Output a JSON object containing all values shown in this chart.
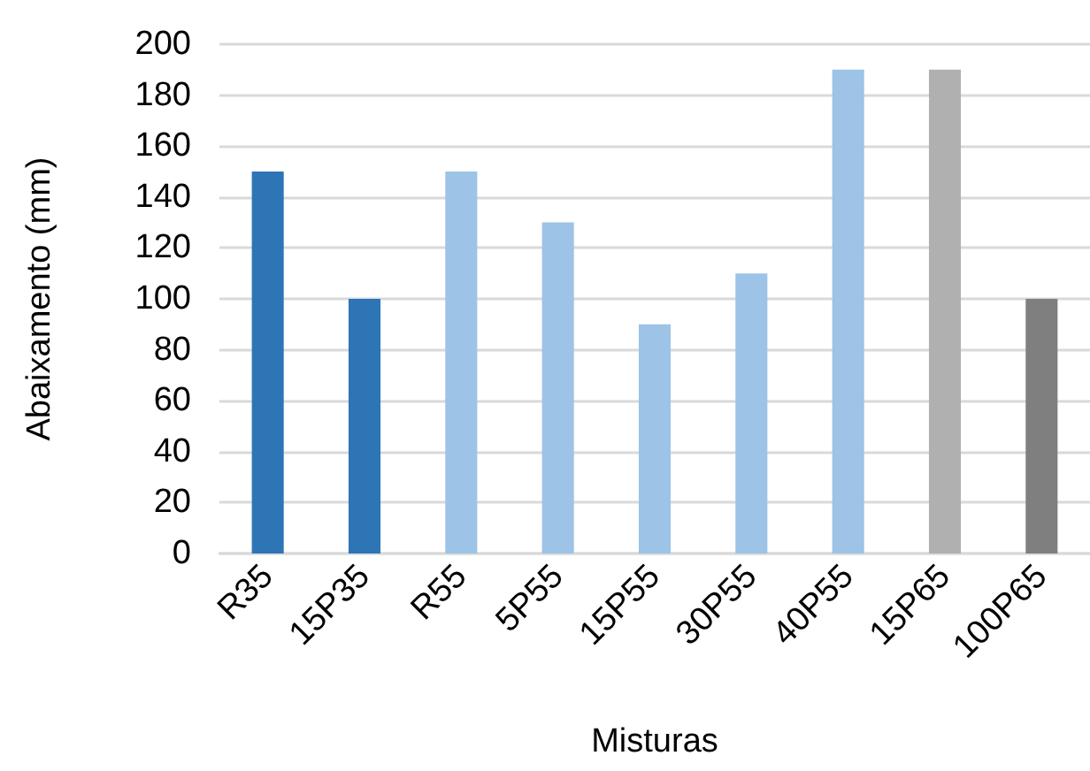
{
  "chart_data": {
    "type": "bar",
    "xlabel": "Misturas",
    "ylabel": "Abaixamento (mm)",
    "categories": [
      "R35",
      "15P35",
      "R55",
      "5P55",
      "15P55",
      "30P55",
      "40P55",
      "15P65",
      "100P65"
    ],
    "values": [
      150,
      100,
      150,
      130,
      90,
      110,
      190,
      190,
      100
    ],
    "colors": [
      "#2e75b6",
      "#2e75b6",
      "#9dc3e6",
      "#9dc3e6",
      "#9dc3e6",
      "#9dc3e6",
      "#9dc3e6",
      "#b0b0b0",
      "#7f7f7f"
    ],
    "ylim": [
      0,
      200
    ],
    "yticks": [
      0,
      20,
      40,
      60,
      80,
      100,
      120,
      140,
      160,
      180,
      200
    ],
    "grid": "y"
  }
}
